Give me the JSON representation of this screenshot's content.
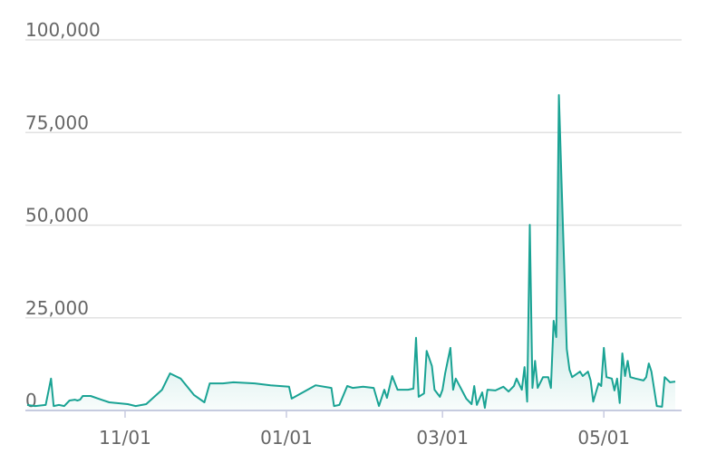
{
  "chart_data": {
    "type": "area",
    "color": "#1aa394",
    "x": [
      "09/25",
      "09/28",
      "10/02",
      "10/04",
      "10/05",
      "10/07",
      "10/09",
      "10/11",
      "10/13",
      "10/14",
      "10/15",
      "10/16",
      "10/19",
      "10/23",
      "10/26",
      "11/02",
      "11/05",
      "11/09",
      "11/15",
      "11/18",
      "11/22",
      "11/27",
      "12/01",
      "12/03",
      "12/08",
      "12/12",
      "12/20",
      "12/26",
      "01/02",
      "01/03",
      "01/12",
      "01/18",
      "01/19",
      "01/21",
      "01/24",
      "01/26",
      "01/30",
      "02/03",
      "02/05",
      "02/07",
      "02/08",
      "02/10",
      "02/12",
      "02/16",
      "02/18",
      "02/19",
      "02/20",
      "02/22",
      "02/23",
      "02/25",
      "02/26",
      "02/28",
      "03/01",
      "03/02",
      "03/04",
      "03/05",
      "03/06",
      "03/10",
      "03/12",
      "03/13",
      "03/14",
      "03/16",
      "03/17",
      "03/18",
      "03/21",
      "03/24",
      "03/26",
      "03/27",
      "03/28",
      "03/29",
      "03/31",
      "04/01",
      "04/02",
      "04/03",
      "04/04",
      "04/05",
      "04/06",
      "04/08",
      "04/10",
      "04/11",
      "04/12",
      "04/13",
      "04/14",
      "04/15",
      "04/17",
      "04/18",
      "04/19",
      "04/22",
      "04/23",
      "04/25",
      "04/26",
      "04/27",
      "04/29",
      "04/30",
      "05/01",
      "05/02",
      "05/04",
      "05/05",
      "05/06",
      "05/07",
      "05/08",
      "05/09",
      "05/10",
      "05/11",
      "05/13",
      "05/16",
      "05/17",
      "05/18",
      "05/19",
      "05/21",
      "05/23",
      "05/24",
      "05/26",
      "05/28"
    ],
    "values": [
      1500,
      1200,
      1500,
      8600,
      1200,
      1500,
      1200,
      2700,
      2900,
      2700,
      2900,
      3900,
      3900,
      2900,
      2200,
      1700,
      1200,
      1700,
      5600,
      10000,
      8600,
      4200,
      2200,
      7300,
      7300,
      7600,
      7300,
      6800,
      6400,
      3200,
      6800,
      6100,
      1200,
      1500,
      6600,
      6100,
      6400,
      6100,
      1200,
      5600,
      3400,
      9300,
      5600,
      5600,
      5900,
      19600,
      3700,
      4600,
      16100,
      12000,
      5600,
      3700,
      5600,
      10000,
      16900,
      5600,
      8600,
      3200,
      1700,
      6600,
      1500,
      4900,
      700,
      5600,
      5400,
      6400,
      5100,
      5900,
      6600,
      8600,
      5600,
      11700,
      2400,
      50100,
      6100,
      13400,
      6100,
      9000,
      9000,
      6100,
      24200,
      19800,
      85100,
      61900,
      16600,
      11000,
      9000,
      10500,
      9300,
      10500,
      8100,
      2400,
      7300,
      6600,
      16900,
      9000,
      8600,
      5400,
      8600,
      2000,
      15400,
      9300,
      13400,
      9000,
      8600,
      8100,
      9000,
      12700,
      10500,
      1200,
      1000,
      9000,
      7600,
      7800
    ],
    "xlim": [
      "09/25",
      "05/28"
    ],
    "xticks": [
      "11/01",
      "01/01",
      "03/01",
      "05/01"
    ],
    "ylim": [
      0,
      100000
    ],
    "yticks": [
      0,
      {
        "value": 25000,
        "label": "25,000"
      },
      {
        "value": 50000,
        "label": "50,000"
      },
      {
        "value": 75000,
        "label": "75,000"
      },
      {
        "value": 100000,
        "label": "100,000"
      }
    ],
    "grid": true
  }
}
